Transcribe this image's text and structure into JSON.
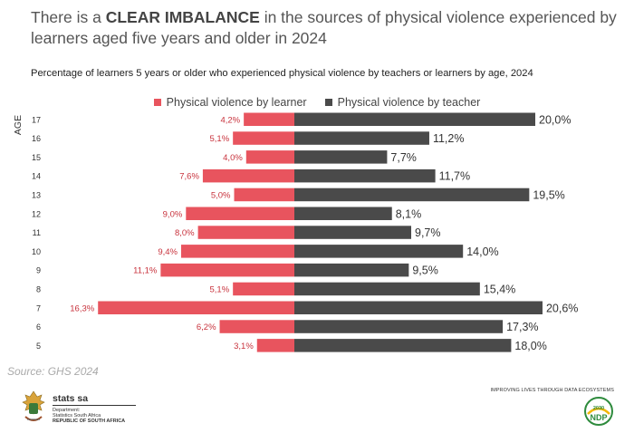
{
  "headline": {
    "pre": "There is a ",
    "emph": "CLEAR IMBALANCE",
    "post": " in the sources of physical violence experienced by learners aged five years and older in 2024"
  },
  "colors": {
    "learner": "#E8545E",
    "teacher": "#4A4A4A",
    "learner_label": "#C8323C",
    "teacher_label": "#333333"
  },
  "chart_data": {
    "type": "bar",
    "orientation": "horizontal-diverging",
    "title": "Percentage of learners 5 years or older who experienced physical violence by teachers or learners by age, 2024",
    "ylabel": "AGE",
    "categories": [
      "17",
      "16",
      "15",
      "14",
      "13",
      "12",
      "11",
      "10",
      "9",
      "8",
      "7",
      "6",
      "5"
    ],
    "series": [
      {
        "name": "Physical violence by learner",
        "values": [
          4.2,
          5.1,
          4.0,
          7.6,
          5.0,
          9.0,
          8.0,
          9.4,
          11.1,
          5.1,
          16.3,
          6.2,
          3.1
        ],
        "labels": [
          "4,2%",
          "5,1%",
          "4,0%",
          "7,6%",
          "5,0%",
          "9,0%",
          "8,0%",
          "9,4%",
          "11,1%",
          "5,1%",
          "16,3%",
          "6,2%",
          "3,1%"
        ]
      },
      {
        "name": "Physical violence by teacher",
        "values": [
          20.0,
          11.2,
          7.7,
          11.7,
          19.5,
          8.1,
          9.7,
          14.0,
          9.5,
          15.4,
          20.6,
          17.3,
          18.0
        ],
        "labels": [
          "20,0%",
          "11,2%",
          "7,7%",
          "11,7%",
          "19,5%",
          "8,1%",
          "9,7%",
          "14,0%",
          "9,5%",
          "15,4%",
          "20,6%",
          "17,3%",
          "18,0%"
        ]
      }
    ],
    "legend_position": "top-center",
    "grid": false
  },
  "source": "Source: GHS 2024",
  "footer": {
    "tagline": "IMPROVING LIVES THROUGH DATA ECOSYSTEMS",
    "logo_name": "stats sa",
    "logo_line1": "Department:",
    "logo_line2": "Statistics South Africa",
    "logo_line3": "REPUBLIC OF SOUTH AFRICA",
    "ndp_text": "NDP",
    "ndp_year": "2030"
  }
}
